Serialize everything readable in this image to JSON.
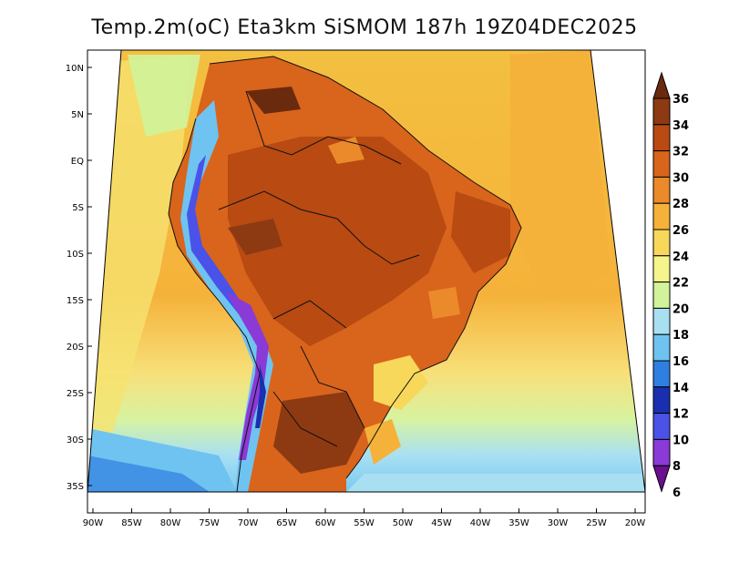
{
  "title": "Temp.2m(oC) Eta3km SiSMOM 187h 19Z04DEC2025",
  "map": {
    "lat_ticks": [
      "10N",
      "5N",
      "EQ",
      "5S",
      "10S",
      "15S",
      "20S",
      "25S",
      "30S",
      "35S"
    ],
    "lon_ticks": [
      "90W",
      "85W",
      "80W",
      "75W",
      "70W",
      "65W",
      "60W",
      "55W",
      "50W",
      "45W",
      "40W",
      "35W",
      "30W",
      "25W",
      "20W"
    ]
  },
  "colorbar": {
    "labels": [
      "36",
      "34",
      "32",
      "30",
      "28",
      "26",
      "24",
      "22",
      "20",
      "18",
      "16",
      "14",
      "12",
      "10",
      "8",
      "6"
    ],
    "colors": [
      "#6a2a0e",
      "#8d3a12",
      "#b84a12",
      "#d9641c",
      "#eb8a2a",
      "#f5b23a",
      "#f7d85a",
      "#f6f58c",
      "#d2f39a",
      "#a8e0f2",
      "#6fc3f0",
      "#2f7fe0",
      "#1a2fb0",
      "#4a52e8",
      "#8a3ad6",
      "#6a0f8e"
    ]
  }
}
